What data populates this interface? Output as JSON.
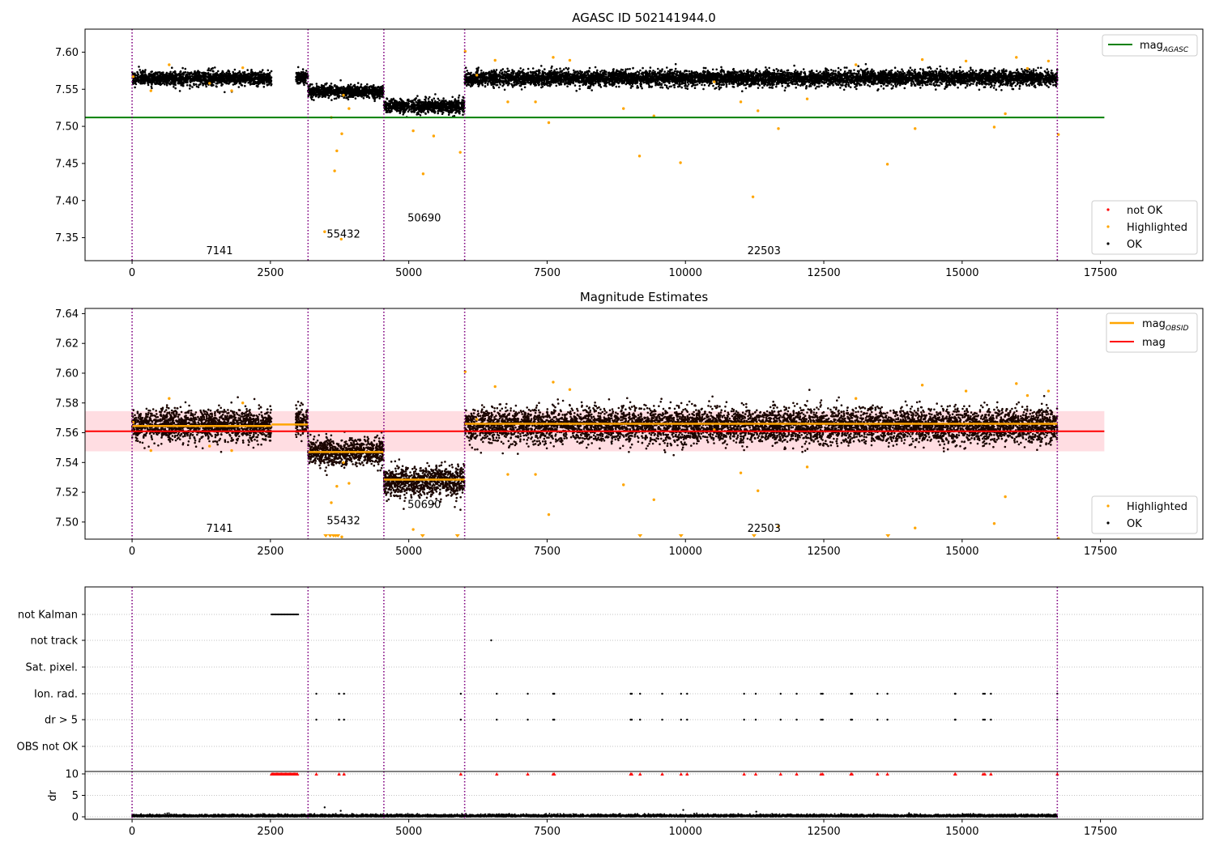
{
  "chart_data": [
    {
      "type": "scatter",
      "title": "AGASC ID 502141944.0",
      "xlabel": "",
      "ylabel": "",
      "xlim": [
        -850,
        19350
      ],
      "ylim": [
        7.319,
        7.631
      ],
      "xticks": [
        0,
        2500,
        5000,
        7500,
        10000,
        12500,
        15000,
        17500
      ],
      "yticks": [
        7.35,
        7.4,
        7.45,
        7.5,
        7.55,
        7.6
      ],
      "yfmt": 2,
      "grid": false,
      "vlines": [
        0,
        3180,
        4550,
        6010,
        16720
      ],
      "segments": [
        {
          "x0": 0,
          "x1": 2520,
          "center": 7.565,
          "spread": 0.0045
        },
        {
          "x0": 2960,
          "x1": 3180,
          "center": 7.567,
          "spread": 0.004
        },
        {
          "x0": 3180,
          "x1": 4550,
          "center": 7.547,
          "spread": 0.004
        },
        {
          "x0": 4550,
          "x1": 6010,
          "center": 7.527,
          "spread": 0.0045
        },
        {
          "x0": 6010,
          "x1": 16720,
          "center": 7.565,
          "spread": 0.005
        }
      ],
      "highlighted": [
        [
          20,
          7.567
        ],
        [
          340,
          7.548
        ],
        [
          670,
          7.583
        ],
        [
          1400,
          7.558
        ],
        [
          1800,
          7.548
        ],
        [
          2000,
          7.579
        ],
        [
          3480,
          7.358
        ],
        [
          3600,
          7.512
        ],
        [
          3660,
          7.44
        ],
        [
          3700,
          7.467
        ],
        [
          3780,
          7.348
        ],
        [
          3790,
          7.49
        ],
        [
          3820,
          7.542
        ],
        [
          3920,
          7.524
        ],
        [
          5080,
          7.494
        ],
        [
          5260,
          7.436
        ],
        [
          5450,
          7.487
        ],
        [
          5930,
          7.465
        ],
        [
          6020,
          7.601
        ],
        [
          6230,
          7.569
        ],
        [
          6560,
          7.589
        ],
        [
          6790,
          7.533
        ],
        [
          7290,
          7.533
        ],
        [
          7530,
          7.505
        ],
        [
          7610,
          7.593
        ],
        [
          7910,
          7.589
        ],
        [
          8880,
          7.524
        ],
        [
          9170,
          7.46
        ],
        [
          9430,
          7.514
        ],
        [
          9910,
          7.451
        ],
        [
          10520,
          7.56
        ],
        [
          11000,
          7.533
        ],
        [
          11220,
          7.405
        ],
        [
          11310,
          7.521
        ],
        [
          11680,
          7.497
        ],
        [
          12200,
          7.537
        ],
        [
          13080,
          7.583
        ],
        [
          13650,
          7.449
        ],
        [
          14150,
          7.497
        ],
        [
          14280,
          7.59
        ],
        [
          15070,
          7.588
        ],
        [
          15580,
          7.499
        ],
        [
          15780,
          7.517
        ],
        [
          15980,
          7.593
        ],
        [
          16180,
          7.578
        ],
        [
          16560,
          7.588
        ],
        [
          16740,
          7.489
        ]
      ],
      "hlines": [
        {
          "name": "mag_AGASC",
          "y": 7.512,
          "x0": -850,
          "x1": 17570,
          "color": "#008000"
        }
      ],
      "segment_labels": [
        {
          "text": "7141",
          "x": 1580,
          "y": 7.328
        },
        {
          "text": "55432",
          "x": 3820,
          "y": 7.35
        },
        {
          "text": "50690",
          "x": 5280,
          "y": 7.372
        },
        {
          "text": "22503",
          "x": 11420,
          "y": 7.328
        }
      ],
      "legends": [
        {
          "position": "top-right",
          "entries": [
            {
              "label": "mag",
              "sub": "AGASC",
              "kind": "line",
              "color": "#008000"
            }
          ]
        },
        {
          "position": "bottom-right",
          "entries": [
            {
              "label": "not OK",
              "kind": "dot",
              "color": "#ff0000"
            },
            {
              "label": "Highlighted",
              "kind": "dot",
              "color": "#ffa500"
            },
            {
              "label": "OK",
              "kind": "dot",
              "color": "#000000"
            }
          ]
        }
      ],
      "colors": {
        "ok": "#000000",
        "highlighted": "#ffa500",
        "not_ok": "#ff0000",
        "vline": "#800080"
      }
    },
    {
      "type": "scatter",
      "title": "Magnitude Estimates",
      "xlabel": "",
      "ylabel": "",
      "xlim": [
        -850,
        19350
      ],
      "ylim": [
        7.4885,
        7.6435
      ],
      "xticks": [
        0,
        2500,
        5000,
        7500,
        10000,
        12500,
        15000,
        17500
      ],
      "yticks": [
        7.5,
        7.52,
        7.54,
        7.56,
        7.58,
        7.6,
        7.62,
        7.64
      ],
      "yfmt": 2,
      "grid": false,
      "vlines": [
        0,
        3180,
        4550,
        6010,
        16720
      ],
      "band": {
        "y0": 7.5475,
        "y1": 7.5745,
        "x0": -850,
        "x1": 17570,
        "color": "#ffdde2"
      },
      "mag_line": {
        "name": "mag",
        "y": 7.561,
        "x0": -850,
        "x1": 17570,
        "color": "#ff0000"
      },
      "obsid_steps": [
        {
          "x0": 0,
          "x1": 2520,
          "y": 7.5645
        },
        {
          "x0": 2520,
          "x1": 3180,
          "y": 7.5655
        },
        {
          "x0": 3180,
          "x1": 4550,
          "y": 7.547
        },
        {
          "x0": 4550,
          "x1": 6010,
          "y": 7.5285
        },
        {
          "x0": 6010,
          "x1": 16720,
          "y": 7.566
        }
      ],
      "segments": [
        {
          "x0": 0,
          "x1": 2520,
          "center": 7.565,
          "spread": 0.005
        },
        {
          "x0": 2960,
          "x1": 3180,
          "center": 7.567,
          "spread": 0.005
        },
        {
          "x0": 3180,
          "x1": 4550,
          "center": 7.547,
          "spread": 0.0045
        },
        {
          "x0": 4550,
          "x1": 6010,
          "center": 7.527,
          "spread": 0.005
        },
        {
          "x0": 6010,
          "x1": 16720,
          "center": 7.565,
          "spread": 0.0058
        }
      ],
      "highlighted": [
        [
          20,
          7.567
        ],
        [
          340,
          7.548
        ],
        [
          670,
          7.583
        ],
        [
          1400,
          7.551
        ],
        [
          1800,
          7.548
        ],
        [
          2000,
          7.58
        ],
        [
          3600,
          7.513
        ],
        [
          3700,
          7.524
        ],
        [
          3790,
          7.49
        ],
        [
          3820,
          7.54
        ],
        [
          3920,
          7.526
        ],
        [
          5080,
          7.495
        ],
        [
          5450,
          7.487
        ],
        [
          6020,
          7.601
        ],
        [
          6230,
          7.569
        ],
        [
          6560,
          7.591
        ],
        [
          6790,
          7.532
        ],
        [
          7290,
          7.532
        ],
        [
          7530,
          7.505
        ],
        [
          7610,
          7.594
        ],
        [
          7910,
          7.589
        ],
        [
          8880,
          7.525
        ],
        [
          9430,
          7.515
        ],
        [
          10520,
          7.562
        ],
        [
          11000,
          7.533
        ],
        [
          11310,
          7.521
        ],
        [
          11680,
          7.497
        ],
        [
          12200,
          7.537
        ],
        [
          13080,
          7.583
        ],
        [
          14150,
          7.496
        ],
        [
          14280,
          7.592
        ],
        [
          15070,
          7.588
        ],
        [
          15580,
          7.499
        ],
        [
          15780,
          7.517
        ],
        [
          15980,
          7.593
        ],
        [
          16180,
          7.585
        ],
        [
          16560,
          7.588
        ],
        [
          16740,
          7.489
        ]
      ],
      "clipped_triangles": [
        3500,
        3580,
        3640,
        3680,
        3720,
        5250,
        5880,
        9180,
        9920,
        11240,
        13660
      ],
      "segment_labels": [
        {
          "text": "7141",
          "x": 1580,
          "y": 7.4935
        },
        {
          "text": "55432",
          "x": 3820,
          "y": 7.4985
        },
        {
          "text": "50690",
          "x": 5280,
          "y": 7.5095
        },
        {
          "text": "22503",
          "x": 11420,
          "y": 7.4935
        }
      ],
      "legends": [
        {
          "position": "top-right",
          "entries": [
            {
              "label": "mag",
              "sub": "OBSID",
              "kind": "line",
              "color": "#ffa500"
            },
            {
              "label": "mag",
              "kind": "line",
              "color": "#ff0000"
            }
          ]
        },
        {
          "position": "bottom-right",
          "entries": [
            {
              "label": "Highlighted",
              "kind": "dot",
              "color": "#ffa500"
            },
            {
              "label": "OK",
              "kind": "dot",
              "color": "#000000"
            }
          ]
        }
      ],
      "colors": {
        "ok": "#1a0500",
        "highlighted": "#ffa500",
        "vline": "#800080"
      }
    },
    {
      "type": "scatter",
      "title": "",
      "xlim": [
        -850,
        19350
      ],
      "xticks": [
        0,
        2500,
        5000,
        7500,
        10000,
        12500,
        15000,
        17500
      ],
      "vlines": [
        0,
        3180,
        4550,
        6010,
        16720
      ],
      "flag_rows": [
        "not Kalman",
        "not track",
        "Sat. pixel.",
        "Ion. rad.",
        "dr > 5",
        "OBS not OK"
      ],
      "not_kalman_range": [
        2520,
        3000
      ],
      "not_track": [
        6490
      ],
      "flag_events": [
        3330,
        3740,
        3830,
        5940,
        6590,
        7150,
        7610,
        7630,
        9010,
        9030,
        9180,
        9580,
        9920,
        10030,
        11060,
        11270,
        11720,
        12010,
        12450,
        12480,
        12990,
        13010,
        13470,
        13650,
        14870,
        14880,
        15380,
        15410,
        15520,
        16720
      ],
      "dr": {
        "yticks": [
          0,
          5,
          10
        ],
        "ylim": [
          -0.3,
          10.3
        ],
        "ylabel": "dr",
        "clipped_value": 10,
        "noise_center": 0.25,
        "outliers": [
          [
            3480,
            2.2
          ],
          [
            3770,
            1.4
          ],
          [
            9960,
            1.6
          ],
          [
            11280,
            1.2
          ]
        ]
      },
      "colors": {
        "points": "#000000",
        "dr_clipped": "#ff0000",
        "vline": "#800080"
      }
    }
  ]
}
